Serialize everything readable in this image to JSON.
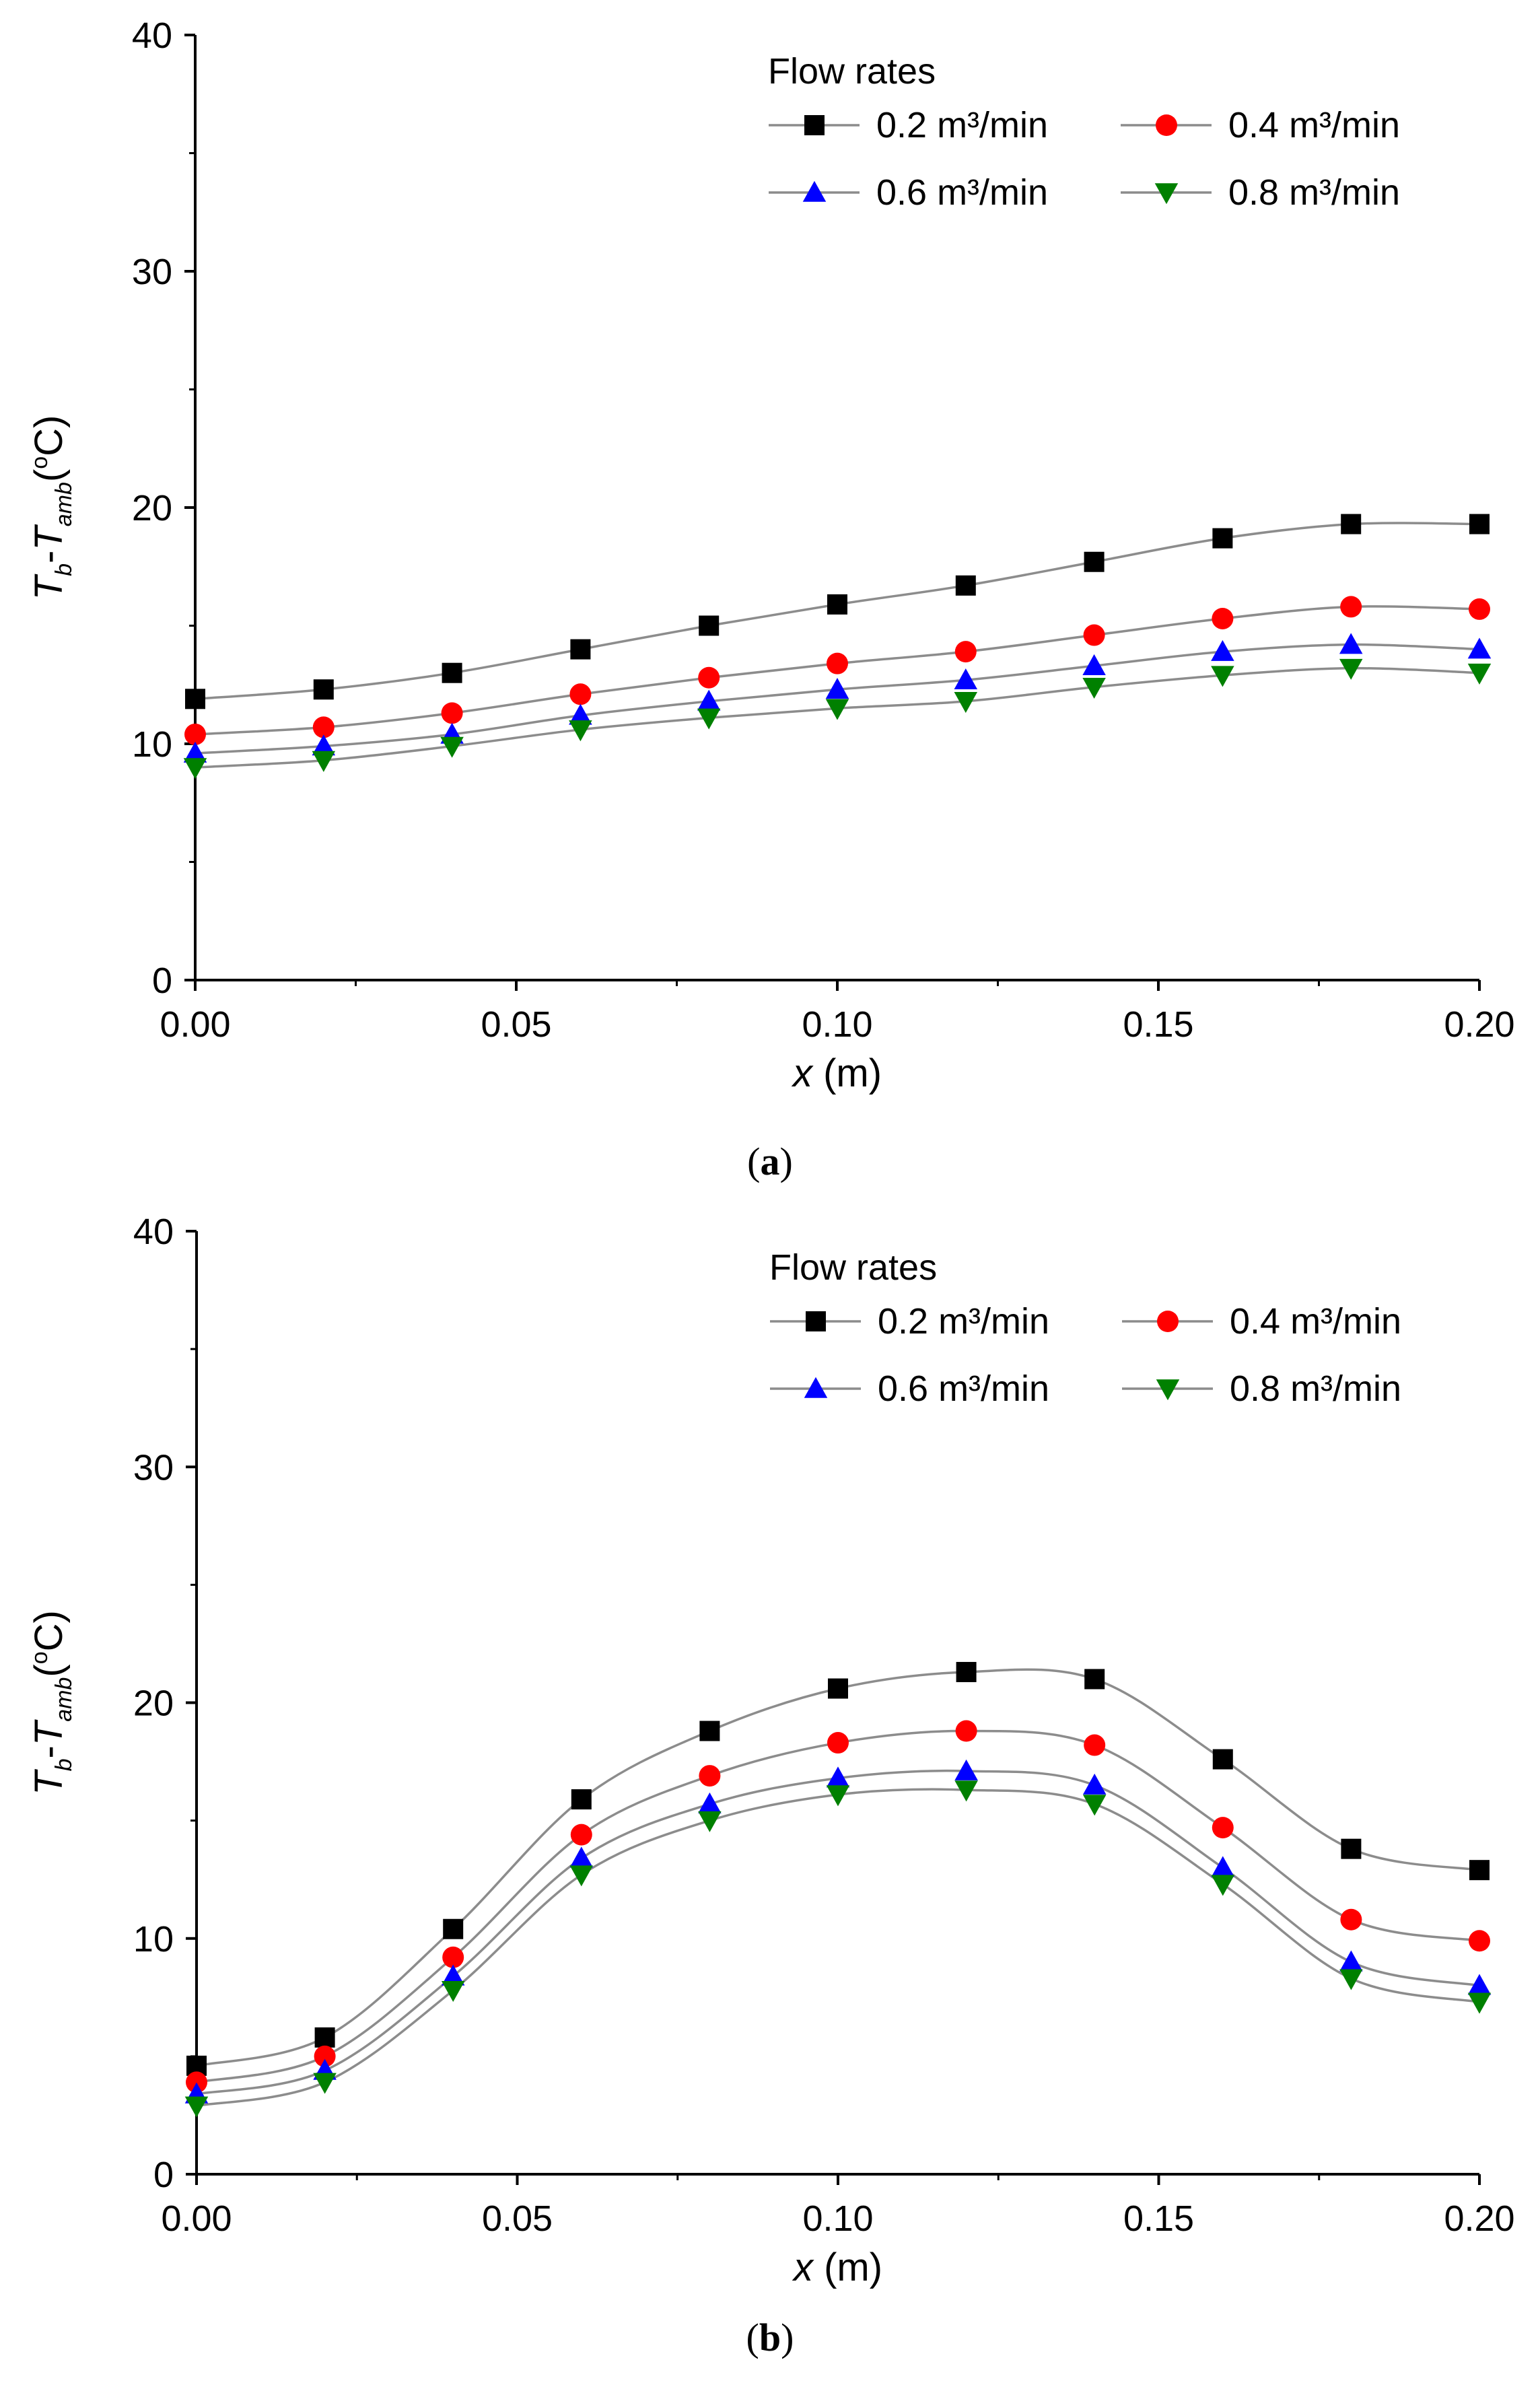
{
  "chart_data": [
    {
      "type": "line",
      "panel_label": "a",
      "x": [
        0.0,
        0.02,
        0.04,
        0.06,
        0.08,
        0.1,
        0.12,
        0.14,
        0.16,
        0.18,
        0.2
      ],
      "xlim": [
        0.0,
        0.2
      ],
      "ylim": [
        0,
        40
      ],
      "xticks": [
        "0.00",
        "0.05",
        "0.10",
        "0.15",
        "0.20"
      ],
      "yticks": [
        "0",
        "10",
        "20",
        "30",
        "40"
      ],
      "xlabel": {
        "var": "x",
        "unit": "(m)"
      },
      "ylabel": {
        "t": "T",
        "sub1": "b",
        "dash": "-",
        "sub2": "amb",
        "pre": "(",
        "sup": "o",
        "post": "C)"
      },
      "legend": {
        "title": "Flow rates",
        "placement": "top-right"
      },
      "series": [
        {
          "name": "0.2 m³/min",
          "color": "#000000",
          "marker": "square",
          "values": [
            11.9,
            12.3,
            13.0,
            14.0,
            15.0,
            15.9,
            16.7,
            17.7,
            18.7,
            19.3,
            19.3
          ]
        },
        {
          "name": "0.4 m³/min",
          "color": "#ff0000",
          "marker": "circle",
          "values": [
            10.4,
            10.7,
            11.3,
            12.1,
            12.8,
            13.4,
            13.9,
            14.6,
            15.3,
            15.8,
            15.7
          ]
        },
        {
          "name": "0.6 m³/min",
          "color": "#0000ff",
          "marker": "triangle-up",
          "values": [
            9.6,
            9.9,
            10.4,
            11.2,
            11.8,
            12.3,
            12.7,
            13.3,
            13.9,
            14.2,
            14.0
          ]
        },
        {
          "name": "0.8 m³/min",
          "color": "#008000",
          "marker": "triangle-down",
          "values": [
            9.0,
            9.3,
            9.9,
            10.6,
            11.1,
            11.5,
            11.8,
            12.4,
            12.9,
            13.2,
            13.0
          ]
        }
      ]
    },
    {
      "type": "line",
      "panel_label": "b",
      "x": [
        0.0,
        0.02,
        0.04,
        0.06,
        0.08,
        0.1,
        0.12,
        0.14,
        0.16,
        0.18,
        0.2
      ],
      "xlim": [
        0.0,
        0.2
      ],
      "ylim": [
        0,
        40
      ],
      "xticks": [
        "0.00",
        "0.05",
        "0.10",
        "0.15",
        "0.20"
      ],
      "yticks": [
        "0",
        "10",
        "20",
        "30",
        "40"
      ],
      "xlabel": {
        "var": "x",
        "unit": "(m)"
      },
      "ylabel": {
        "t": "T",
        "sub1": "b",
        "dash": "-",
        "sub2": "amb",
        "pre": "(",
        "sup": "o",
        "post": "C)"
      },
      "legend": {
        "title": "Flow rates",
        "placement": "top-right"
      },
      "series": [
        {
          "name": "0.2 m³/min",
          "color": "#000000",
          "marker": "square",
          "values": [
            4.6,
            5.8,
            10.4,
            15.9,
            18.8,
            20.6,
            21.3,
            21.0,
            17.6,
            13.8,
            12.9
          ]
        },
        {
          "name": "0.4 m³/min",
          "color": "#ff0000",
          "marker": "circle",
          "values": [
            3.9,
            5.0,
            9.2,
            14.4,
            16.9,
            18.3,
            18.8,
            18.2,
            14.7,
            10.8,
            9.9
          ]
        },
        {
          "name": "0.6 m³/min",
          "color": "#0000ff",
          "marker": "triangle-up",
          "values": [
            3.4,
            4.4,
            8.4,
            13.4,
            15.7,
            16.8,
            17.1,
            16.5,
            13.0,
            9.0,
            8.0
          ]
        },
        {
          "name": "0.8 m³/min",
          "color": "#008000",
          "marker": "triangle-down",
          "values": [
            2.9,
            3.9,
            7.8,
            12.7,
            15.0,
            16.1,
            16.3,
            15.7,
            12.3,
            8.3,
            7.3
          ]
        }
      ]
    }
  ]
}
